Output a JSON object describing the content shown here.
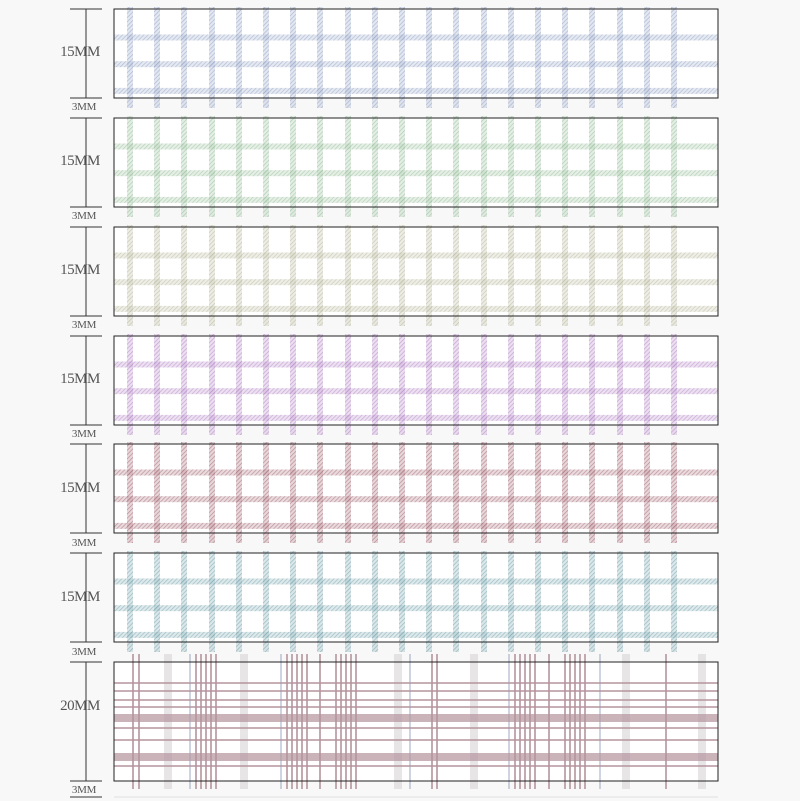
{
  "strips": [
    {
      "label": "15MM",
      "gap_label": "3MM",
      "color": "#9aa8c8",
      "style": "blue-grid"
    },
    {
      "label": "15MM",
      "gap_label": "3MM",
      "color": "#9cc2a0",
      "style": "green-grid"
    },
    {
      "label": "15MM",
      "gap_label": "3MM",
      "color": "#bcbca4",
      "style": "khaki-grid"
    },
    {
      "label": "15MM",
      "gap_label": "3MM",
      "color": "#b88cc8",
      "style": "purple-grid"
    },
    {
      "label": "15MM",
      "gap_label": "3MM",
      "color": "#a8707c",
      "style": "maroon-grid"
    },
    {
      "label": "15MM",
      "gap_label": "3MM",
      "color": "#7ea8b0",
      "style": "teal-grid"
    },
    {
      "label": "20MM",
      "gap_label": "3MM",
      "color": "#b4949c",
      "style": "plaid"
    }
  ]
}
